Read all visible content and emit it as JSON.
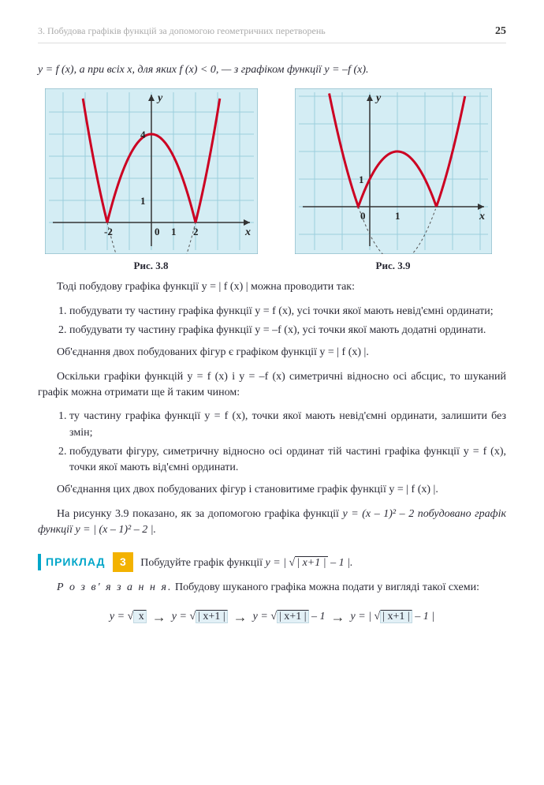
{
  "header": {
    "section": "3.  Побудова графіків функцій за допомогою геометричних перетворень",
    "page_number": "25"
  },
  "intro_text": "y = f (x), а при всіх x, для яких f (x) < 0, — з графіком функції y = –f (x).",
  "fig38": {
    "caption": "Рис. 3.8",
    "bg_color": "#d4edf4",
    "grid_color": "#9bcedd",
    "axis_color": "#333333",
    "curve_color": "#cc0022",
    "dashed_color": "#555555",
    "x_labels": [
      "-2",
      "0",
      "1",
      "2"
    ],
    "y_labels": [
      "1",
      "4"
    ],
    "axis_names": {
      "x": "x",
      "y": "y"
    }
  },
  "fig39": {
    "caption": "Рис. 3.9",
    "bg_color": "#d4edf4",
    "grid_color": "#9bcedd",
    "axis_color": "#333333",
    "curve_color": "#cc0022",
    "dashed_color": "#555555",
    "x_labels": [
      "0",
      "1"
    ],
    "y_labels": [
      "1"
    ],
    "axis_names": {
      "x": "x",
      "y": "y"
    }
  },
  "body": {
    "p1": "Тоді побудову графіка функції y = | f (x) | можна проводити так:",
    "list1_item1": "побудувати ту частину графіка функції y = f (x), усі точки якої мають невід'ємні ординати;",
    "list1_item2": "побудувати ту частину графіка функції y = –f (x), усі точки якої мають додатні ординати.",
    "p2": "Об'єднання двох побудованих фігур є графіком функції y = | f (x) |.",
    "p3": "Оскільки графіки функцій y = f (x) і y = –f (x) симетричні відносно осі абсцис, то шуканий графік можна отримати ще й таким чином:",
    "list2_item1": "ту частину графіка функції y = f (x), точки якої мають невід'ємні ординати, залишити без змін;",
    "list2_item2": "побудувати фігуру, симетричну відносно осі ординат тій частині графіка функції y = f (x), точки якої мають від'ємні ординати.",
    "p4": "Об'єднання цих двох побудованих фігур і становитиме графік функції y = | f (x) |.",
    "p5a": "На рисунку 3.9 показано, як за допомогою графіка функції ",
    "p5b": "y = (x – 1)² – 2 побудовано графік функції y = | (x – 1)² – 2 |."
  },
  "example": {
    "tag": "ПРИКЛАД",
    "num": "3",
    "prompt": "Побудуйте графік функції ",
    "formula": "y = | √| x + 1 | – 1 |."
  },
  "solution": {
    "label": "Р о з в' я з а н н я.",
    "text": "Побудову шуканого графіка можна подати у вигляді такої схеми:",
    "chain": {
      "step1": "y = √ x",
      "box1": "x",
      "step2": "y = √| x+1 |",
      "box2": "| x+1 |",
      "step3": "y = √| x+1 | – 1",
      "box3": "| x+1 |",
      "step4": "y = | √| x+1 | – 1 |",
      "box4": "| x+1 |"
    }
  }
}
